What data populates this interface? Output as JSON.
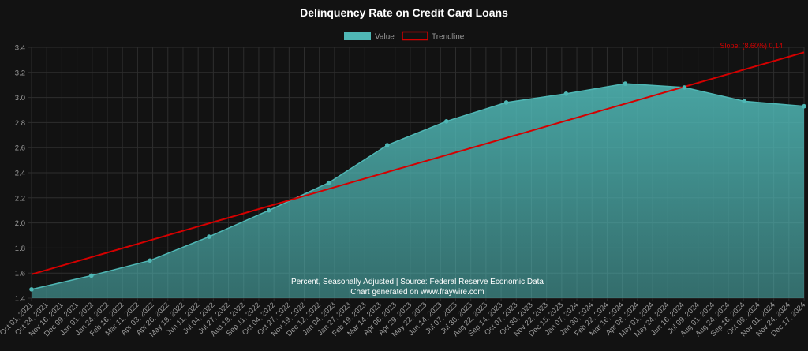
{
  "colors": {
    "background": "#121212",
    "grid": "#2e2e2e",
    "value_line": "#4fb7b5",
    "trendline": "#d40000",
    "label_text": "#9a9a9a"
  },
  "chart_data": {
    "type": "area",
    "title": "Delinquency Rate on Credit Card Loans",
    "legend": [
      {
        "label": "Value",
        "color": "#4fb7b5",
        "style": "filled"
      },
      {
        "label": "Trendline",
        "color": "#d40000",
        "style": "outline"
      }
    ],
    "legend_position": "top-center",
    "y_ticks": [
      "1.4",
      "1.6",
      "1.8",
      "2.0",
      "2.2",
      "2.4",
      "2.6",
      "2.8",
      "3.0",
      "3.2",
      "3.4"
    ],
    "ylim": [
      1.4,
      3.4
    ],
    "grid": true,
    "x_tick_labels": [
      "Oct 01, 2021",
      "Oct 24, 2021",
      "Nov 16, 2021",
      "Dec 09, 2021",
      "Jan 01, 2022",
      "Jan 24, 2022",
      "Feb 16, 2022",
      "Mar 11, 2022",
      "Apr 03, 2022",
      "Apr 26, 2022",
      "May 19, 2022",
      "Jun 11, 2022",
      "Jul 04, 2022",
      "Jul 27, 2022",
      "Aug 19, 2022",
      "Sep 11, 2022",
      "Oct 04, 2022",
      "Oct 27, 2022",
      "Nov 19, 2022",
      "Dec 12, 2022",
      "Jan 04, 2023",
      "Jan 27, 2023",
      "Feb 19, 2023",
      "Mar 14, 2023",
      "Apr 06, 2023",
      "Apr 29, 2023",
      "May 22, 2023",
      "Jun 14, 2023",
      "Jul 07, 2023",
      "Jul 30, 2023",
      "Aug 22, 2023",
      "Sep 14, 2023",
      "Oct 07, 2023",
      "Oct 30, 2023",
      "Nov 22, 2023",
      "Dec 15, 2023",
      "Jan 07, 2024",
      "Jan 30, 2024",
      "Feb 22, 2024",
      "Mar 16, 2024",
      "Apr 08, 2024",
      "May 01, 2024",
      "May 24, 2024",
      "Jun 16, 2024",
      "Jul 09, 2024",
      "Aug 01, 2024",
      "Aug 24, 2024",
      "Sep 16, 2024",
      "Oct 09, 2024",
      "Nov 01, 2024",
      "Nov 24, 2024",
      "Dec 17, 2024"
    ],
    "series": [
      {
        "name": "Value",
        "points": [
          {
            "x": "2021-10-01",
            "y": 1.47
          },
          {
            "x": "2022-01-01",
            "y": 1.58
          },
          {
            "x": "2022-04-01",
            "y": 1.7
          },
          {
            "x": "2022-07-01",
            "y": 1.89
          },
          {
            "x": "2022-10-01",
            "y": 2.1
          },
          {
            "x": "2023-01-01",
            "y": 2.32
          },
          {
            "x": "2023-04-01",
            "y": 2.62
          },
          {
            "x": "2023-07-01",
            "y": 2.81
          },
          {
            "x": "2023-10-01",
            "y": 2.96
          },
          {
            "x": "2024-01-01",
            "y": 3.03
          },
          {
            "x": "2024-04-01",
            "y": 3.11
          },
          {
            "x": "2024-07-01",
            "y": 3.08
          },
          {
            "x": "2024-10-01",
            "y": 2.97
          },
          {
            "x": "2025-01-01",
            "y": 2.93
          }
        ]
      },
      {
        "name": "Trendline",
        "points": [
          {
            "x": "2021-10-01",
            "y": 1.59
          },
          {
            "x": "2025-01-01",
            "y": 3.36
          }
        ]
      }
    ],
    "annotation": "Slope: (8.60%) 0.14",
    "footer_line1": "Percent, Seasonally Adjusted | Source: Federal Reserve Economic Data",
    "footer_line2": "Chart generated on www.fraywire.com"
  }
}
